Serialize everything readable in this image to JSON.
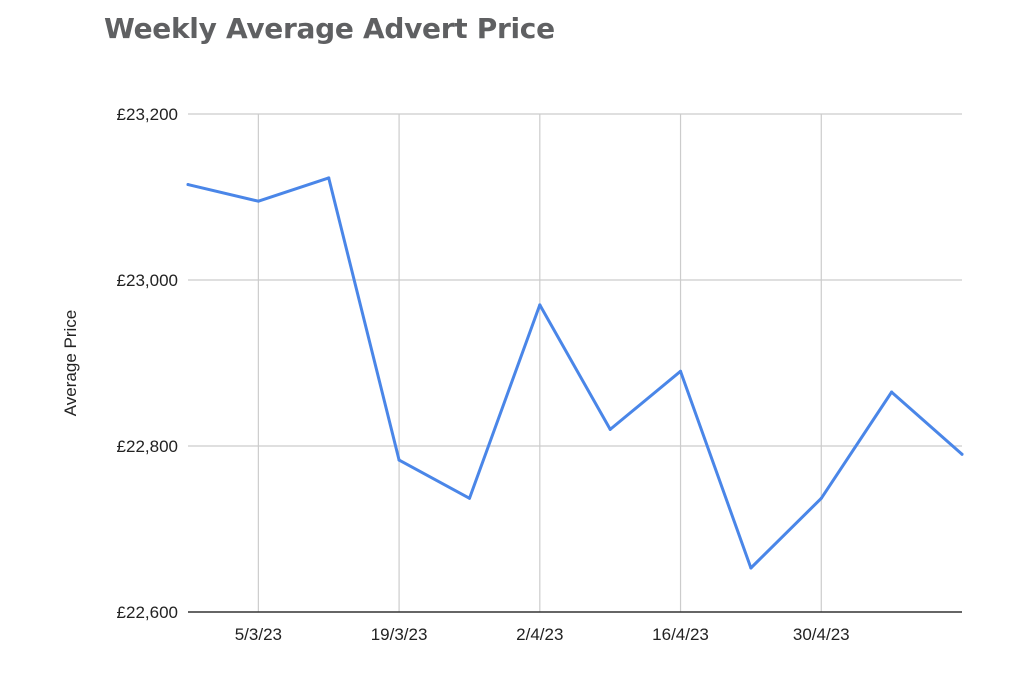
{
  "chart_data": {
    "type": "line",
    "title": "Weekly Average Advert Price",
    "xlabel": "",
    "ylabel": "Average Price",
    "ylim": [
      22600,
      23200
    ],
    "xlim": [
      "2023-02-26",
      "2023-05-14"
    ],
    "yticks": [
      {
        "value": 22600,
        "label": "£22,600"
      },
      {
        "value": 22800,
        "label": "£22,800"
      },
      {
        "value": 23000,
        "label": "£23,000"
      },
      {
        "value": 23200,
        "label": "£23,200"
      }
    ],
    "xticks": [
      {
        "date": "2023-03-05",
        "label": "5/3/23"
      },
      {
        "date": "2023-03-19",
        "label": "19/3/23"
      },
      {
        "date": "2023-04-02",
        "label": "2/4/23"
      },
      {
        "date": "2023-04-16",
        "label": "16/4/23"
      },
      {
        "date": "2023-04-30",
        "label": "30/4/23"
      }
    ],
    "grid": true,
    "series": [
      {
        "name": "",
        "color": "#4a86e8",
        "points": [
          {
            "x": "2023-02-26",
            "y": 23115
          },
          {
            "x": "2023-03-05",
            "y": 23095
          },
          {
            "x": "2023-03-12",
            "y": 23123
          },
          {
            "x": "2023-03-19",
            "y": 22783
          },
          {
            "x": "2023-03-26",
            "y": 22737
          },
          {
            "x": "2023-04-02",
            "y": 22970
          },
          {
            "x": "2023-04-09",
            "y": 22820
          },
          {
            "x": "2023-04-16",
            "y": 22890
          },
          {
            "x": "2023-04-23",
            "y": 22653
          },
          {
            "x": "2023-04-30",
            "y": 22737
          },
          {
            "x": "2023-05-07",
            "y": 22865
          },
          {
            "x": "2023-05-14",
            "y": 22790
          }
        ]
      }
    ]
  }
}
